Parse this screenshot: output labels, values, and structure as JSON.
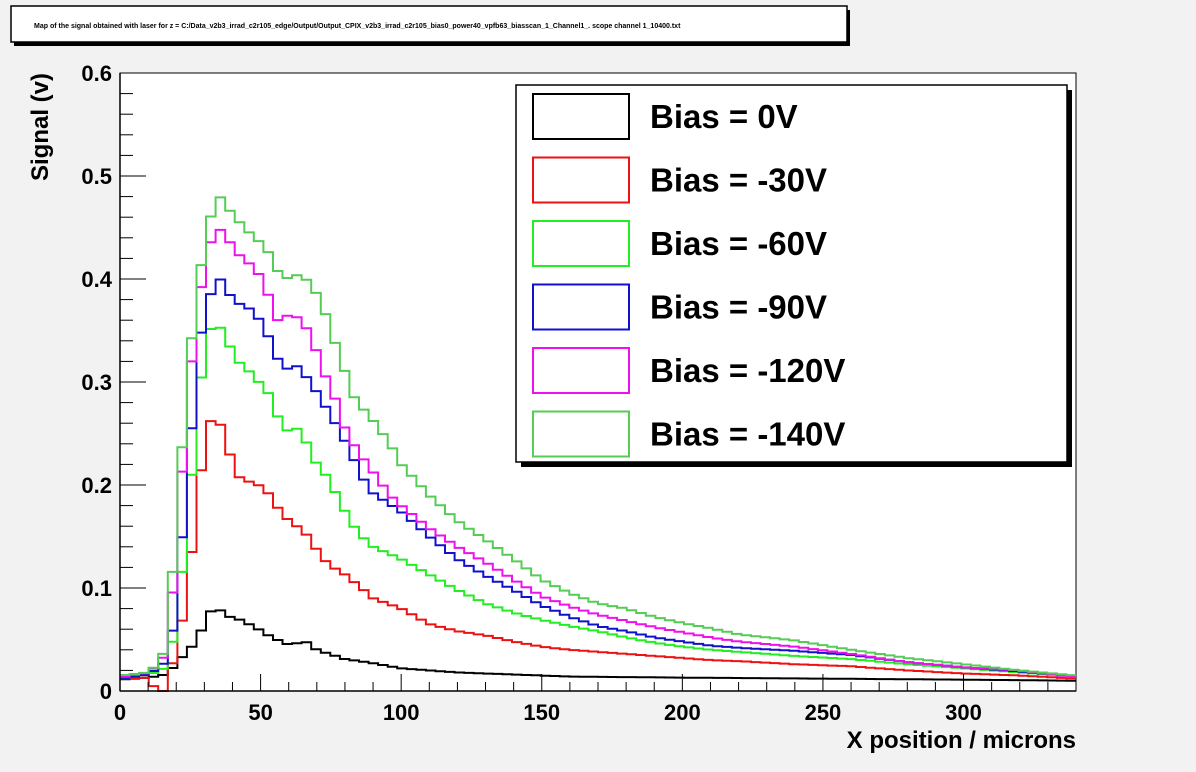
{
  "chart_data": {
    "type": "line",
    "style": "step-histogram",
    "title": "Map of the signal obtained with laser for z = C:/Data_v2b3_irrad_c2r105_edge/Output/Output_CPIX_v2b3_irrad_c2r105_bias0_power40_vpfb63_biasscan_1_Channel1_. scope channel 1_10400.txt",
    "xlabel": "X position / microns",
    "ylabel": "Signal (v)",
    "xlim": [
      0,
      340
    ],
    "ylim": [
      0,
      0.6
    ],
    "bin_width": 3.4,
    "x_ticks": [
      0,
      50,
      100,
      150,
      200,
      250,
      300
    ],
    "x_tick_labels": [
      "0",
      "50",
      "100",
      "150",
      "200",
      "250",
      "300"
    ],
    "y_ticks": [
      0,
      0.1,
      0.2,
      0.3,
      0.4,
      0.5,
      0.6
    ],
    "y_tick_labels": [
      "0",
      "0.1",
      "0.2",
      "0.3",
      "0.4",
      "0.5",
      "0.6"
    ],
    "legend_position": "top-right",
    "series": [
      {
        "name": "Bias = 0V",
        "label": "Bias = 0V",
        "color": "#000000",
        "points": [
          [
            0,
            0.011
          ],
          [
            10,
            0.013
          ],
          [
            15,
            0.015
          ],
          [
            18,
            0.02
          ],
          [
            21,
            0.03
          ],
          [
            24,
            0.038
          ],
          [
            27,
            0.048
          ],
          [
            30,
            0.065
          ],
          [
            33,
            0.081
          ],
          [
            36,
            0.078
          ],
          [
            39,
            0.072
          ],
          [
            42,
            0.07
          ],
          [
            48,
            0.062
          ],
          [
            54,
            0.052
          ],
          [
            60,
            0.045
          ],
          [
            66,
            0.048
          ],
          [
            70,
            0.04
          ],
          [
            80,
            0.031
          ],
          [
            90,
            0.027
          ],
          [
            100,
            0.022
          ],
          [
            120,
            0.018
          ],
          [
            140,
            0.016
          ],
          [
            160,
            0.014
          ],
          [
            200,
            0.013
          ],
          [
            250,
            0.012
          ],
          [
            300,
            0.011
          ],
          [
            340,
            0.01
          ]
        ]
      },
      {
        "name": "Bias = -30V",
        "label": "Bias = -30V",
        "color": "#ee1111",
        "points": [
          [
            0,
            0.012
          ],
          [
            10,
            0.013
          ],
          [
            13,
            0.0
          ],
          [
            16,
            0.0
          ],
          [
            18,
            0.02
          ],
          [
            21,
            0.05
          ],
          [
            24,
            0.1
          ],
          [
            27,
            0.17
          ],
          [
            30,
            0.24
          ],
          [
            32,
            0.262
          ],
          [
            35,
            0.262
          ],
          [
            37,
            0.252
          ],
          [
            40,
            0.22
          ],
          [
            43,
            0.205
          ],
          [
            48,
            0.202
          ],
          [
            52,
            0.195
          ],
          [
            58,
            0.17
          ],
          [
            62,
            0.162
          ],
          [
            66,
            0.153
          ],
          [
            70,
            0.137
          ],
          [
            74,
            0.123
          ],
          [
            80,
            0.113
          ],
          [
            85,
            0.102
          ],
          [
            90,
            0.09
          ],
          [
            100,
            0.08
          ],
          [
            110,
            0.065
          ],
          [
            120,
            0.058
          ],
          [
            130,
            0.054
          ],
          [
            140,
            0.048
          ],
          [
            150,
            0.043
          ],
          [
            160,
            0.04
          ],
          [
            170,
            0.038
          ],
          [
            180,
            0.036
          ],
          [
            190,
            0.034
          ],
          [
            200,
            0.032
          ],
          [
            210,
            0.03
          ],
          [
            220,
            0.029
          ],
          [
            240,
            0.026
          ],
          [
            260,
            0.024
          ],
          [
            280,
            0.02
          ],
          [
            300,
            0.017
          ],
          [
            320,
            0.015
          ],
          [
            340,
            0.012
          ]
        ]
      },
      {
        "name": "Bias = -60V",
        "label": "Bias = -60V",
        "color": "#22ee22",
        "points": [
          [
            0,
            0.012
          ],
          [
            10,
            0.016
          ],
          [
            15,
            0.02
          ],
          [
            18,
            0.035
          ],
          [
            21,
            0.09
          ],
          [
            24,
            0.16
          ],
          [
            27,
            0.26
          ],
          [
            30,
            0.33
          ],
          [
            33,
            0.358
          ],
          [
            36,
            0.352
          ],
          [
            39,
            0.335
          ],
          [
            42,
            0.32
          ],
          [
            46,
            0.31
          ],
          [
            50,
            0.298
          ],
          [
            54,
            0.285
          ],
          [
            58,
            0.25
          ],
          [
            62,
            0.258
          ],
          [
            66,
            0.243
          ],
          [
            70,
            0.22
          ],
          [
            74,
            0.207
          ],
          [
            78,
            0.185
          ],
          [
            82,
            0.164
          ],
          [
            86,
            0.15
          ],
          [
            90,
            0.14
          ],
          [
            100,
            0.128
          ],
          [
            110,
            0.113
          ],
          [
            120,
            0.098
          ],
          [
            130,
            0.085
          ],
          [
            140,
            0.076
          ],
          [
            150,
            0.069
          ],
          [
            160,
            0.063
          ],
          [
            170,
            0.058
          ],
          [
            180,
            0.052
          ],
          [
            190,
            0.047
          ],
          [
            200,
            0.043
          ],
          [
            210,
            0.04
          ],
          [
            220,
            0.038
          ],
          [
            240,
            0.034
          ],
          [
            260,
            0.031
          ],
          [
            280,
            0.026
          ],
          [
            300,
            0.022
          ],
          [
            320,
            0.018
          ],
          [
            340,
            0.014
          ]
        ]
      },
      {
        "name": "Bias = -90V",
        "label": "Bias = -90V",
        "color": "#1111cc",
        "points": [
          [
            0,
            0.012
          ],
          [
            10,
            0.016
          ],
          [
            15,
            0.025
          ],
          [
            18,
            0.04
          ],
          [
            21,
            0.12
          ],
          [
            24,
            0.2
          ],
          [
            27,
            0.31
          ],
          [
            30,
            0.37
          ],
          [
            33,
            0.39
          ],
          [
            35,
            0.402
          ],
          [
            37,
            0.395
          ],
          [
            40,
            0.38
          ],
          [
            43,
            0.375
          ],
          [
            47,
            0.37
          ],
          [
            51,
            0.355
          ],
          [
            55,
            0.33
          ],
          [
            58,
            0.31
          ],
          [
            62,
            0.318
          ],
          [
            66,
            0.306
          ],
          [
            70,
            0.29
          ],
          [
            74,
            0.272
          ],
          [
            78,
            0.253
          ],
          [
            82,
            0.232
          ],
          [
            86,
            0.208
          ],
          [
            90,
            0.192
          ],
          [
            95,
            0.183
          ],
          [
            100,
            0.174
          ],
          [
            110,
            0.15
          ],
          [
            120,
            0.128
          ],
          [
            130,
            0.112
          ],
          [
            140,
            0.098
          ],
          [
            150,
            0.083
          ],
          [
            160,
            0.072
          ],
          [
            170,
            0.063
          ],
          [
            180,
            0.058
          ],
          [
            190,
            0.052
          ],
          [
            200,
            0.048
          ],
          [
            210,
            0.044
          ],
          [
            220,
            0.042
          ],
          [
            240,
            0.039
          ],
          [
            260,
            0.035
          ],
          [
            280,
            0.028
          ],
          [
            300,
            0.023
          ],
          [
            320,
            0.019
          ],
          [
            340,
            0.014
          ]
        ]
      },
      {
        "name": "Bias = -120V",
        "label": "Bias = -120V",
        "color": "#ee11ee",
        "points": [
          [
            0,
            0.013
          ],
          [
            10,
            0.018
          ],
          [
            15,
            0.028
          ],
          [
            18,
            0.07
          ],
          [
            21,
            0.18
          ],
          [
            24,
            0.27
          ],
          [
            27,
            0.37
          ],
          [
            30,
            0.405
          ],
          [
            33,
            0.445
          ],
          [
            35,
            0.45
          ],
          [
            38,
            0.44
          ],
          [
            41,
            0.428
          ],
          [
            44,
            0.418
          ],
          [
            48,
            0.412
          ],
          [
            52,
            0.39
          ],
          [
            56,
            0.36
          ],
          [
            60,
            0.365
          ],
          [
            64,
            0.362
          ],
          [
            68,
            0.345
          ],
          [
            72,
            0.312
          ],
          [
            76,
            0.288
          ],
          [
            80,
            0.255
          ],
          [
            84,
            0.235
          ],
          [
            88,
            0.22
          ],
          [
            92,
            0.205
          ],
          [
            96,
            0.19
          ],
          [
            100,
            0.18
          ],
          [
            110,
            0.158
          ],
          [
            120,
            0.14
          ],
          [
            130,
            0.125
          ],
          [
            140,
            0.108
          ],
          [
            150,
            0.092
          ],
          [
            160,
            0.082
          ],
          [
            170,
            0.074
          ],
          [
            180,
            0.068
          ],
          [
            190,
            0.062
          ],
          [
            200,
            0.057
          ],
          [
            210,
            0.052
          ],
          [
            220,
            0.048
          ],
          [
            240,
            0.043
          ],
          [
            260,
            0.036
          ],
          [
            280,
            0.028
          ],
          [
            300,
            0.023
          ],
          [
            320,
            0.02
          ],
          [
            340,
            0.013
          ]
        ]
      },
      {
        "name": "Bias = -140V",
        "label": "Bias = -140V",
        "color": "#55cc55",
        "points": [
          [
            0,
            0.015
          ],
          [
            10,
            0.018
          ],
          [
            15,
            0.03
          ],
          [
            18,
            0.09
          ],
          [
            21,
            0.2
          ],
          [
            24,
            0.3
          ],
          [
            27,
            0.385
          ],
          [
            30,
            0.43
          ],
          [
            33,
            0.47
          ],
          [
            35,
            0.482
          ],
          [
            38,
            0.47
          ],
          [
            41,
            0.46
          ],
          [
            44,
            0.45
          ],
          [
            48,
            0.44
          ],
          [
            52,
            0.43
          ],
          [
            56,
            0.408
          ],
          [
            60,
            0.4
          ],
          [
            64,
            0.405
          ],
          [
            68,
            0.395
          ],
          [
            72,
            0.375
          ],
          [
            76,
            0.342
          ],
          [
            80,
            0.31
          ],
          [
            84,
            0.28
          ],
          [
            88,
            0.27
          ],
          [
            92,
            0.255
          ],
          [
            96,
            0.24
          ],
          [
            100,
            0.22
          ],
          [
            110,
            0.19
          ],
          [
            120,
            0.165
          ],
          [
            130,
            0.147
          ],
          [
            140,
            0.128
          ],
          [
            150,
            0.108
          ],
          [
            160,
            0.095
          ],
          [
            170,
            0.085
          ],
          [
            180,
            0.08
          ],
          [
            190,
            0.072
          ],
          [
            200,
            0.066
          ],
          [
            210,
            0.061
          ],
          [
            220,
            0.055
          ],
          [
            240,
            0.049
          ],
          [
            260,
            0.04
          ],
          [
            280,
            0.032
          ],
          [
            300,
            0.026
          ],
          [
            320,
            0.02
          ],
          [
            340,
            0.015
          ]
        ]
      }
    ]
  }
}
